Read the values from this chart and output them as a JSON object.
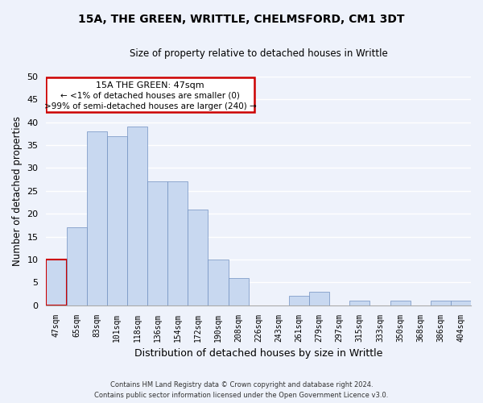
{
  "title": "15A, THE GREEN, WRITTLE, CHELMSFORD, CM1 3DT",
  "subtitle": "Size of property relative to detached houses in Writtle",
  "xlabel": "Distribution of detached houses by size in Writtle",
  "ylabel": "Number of detached properties",
  "bar_labels": [
    "47sqm",
    "65sqm",
    "83sqm",
    "101sqm",
    "118sqm",
    "136sqm",
    "154sqm",
    "172sqm",
    "190sqm",
    "208sqm",
    "226sqm",
    "243sqm",
    "261sqm",
    "279sqm",
    "297sqm",
    "315sqm",
    "333sqm",
    "350sqm",
    "368sqm",
    "386sqm",
    "404sqm"
  ],
  "bar_values": [
    10,
    17,
    38,
    37,
    39,
    27,
    27,
    21,
    10,
    6,
    0,
    0,
    2,
    3,
    0,
    1,
    0,
    1,
    0,
    1,
    1
  ],
  "bar_color": "#c8d8f0",
  "bar_edge_color": "#7090c0",
  "highlight_bar_index": 0,
  "ylim": [
    0,
    50
  ],
  "yticks": [
    0,
    5,
    10,
    15,
    20,
    25,
    30,
    35,
    40,
    45,
    50
  ],
  "highlight_rect_color": "#cc0000",
  "ann_line1": "15A THE GREEN: 47sqm",
  "ann_line2": "← <1% of detached houses are smaller (0)",
  "ann_line3": ">99% of semi-detached houses are larger (240) →",
  "footer_line1": "Contains HM Land Registry data © Crown copyright and database right 2024.",
  "footer_line2": "Contains public sector information licensed under the Open Government Licence v3.0.",
  "bg_color": "#eef2fb"
}
